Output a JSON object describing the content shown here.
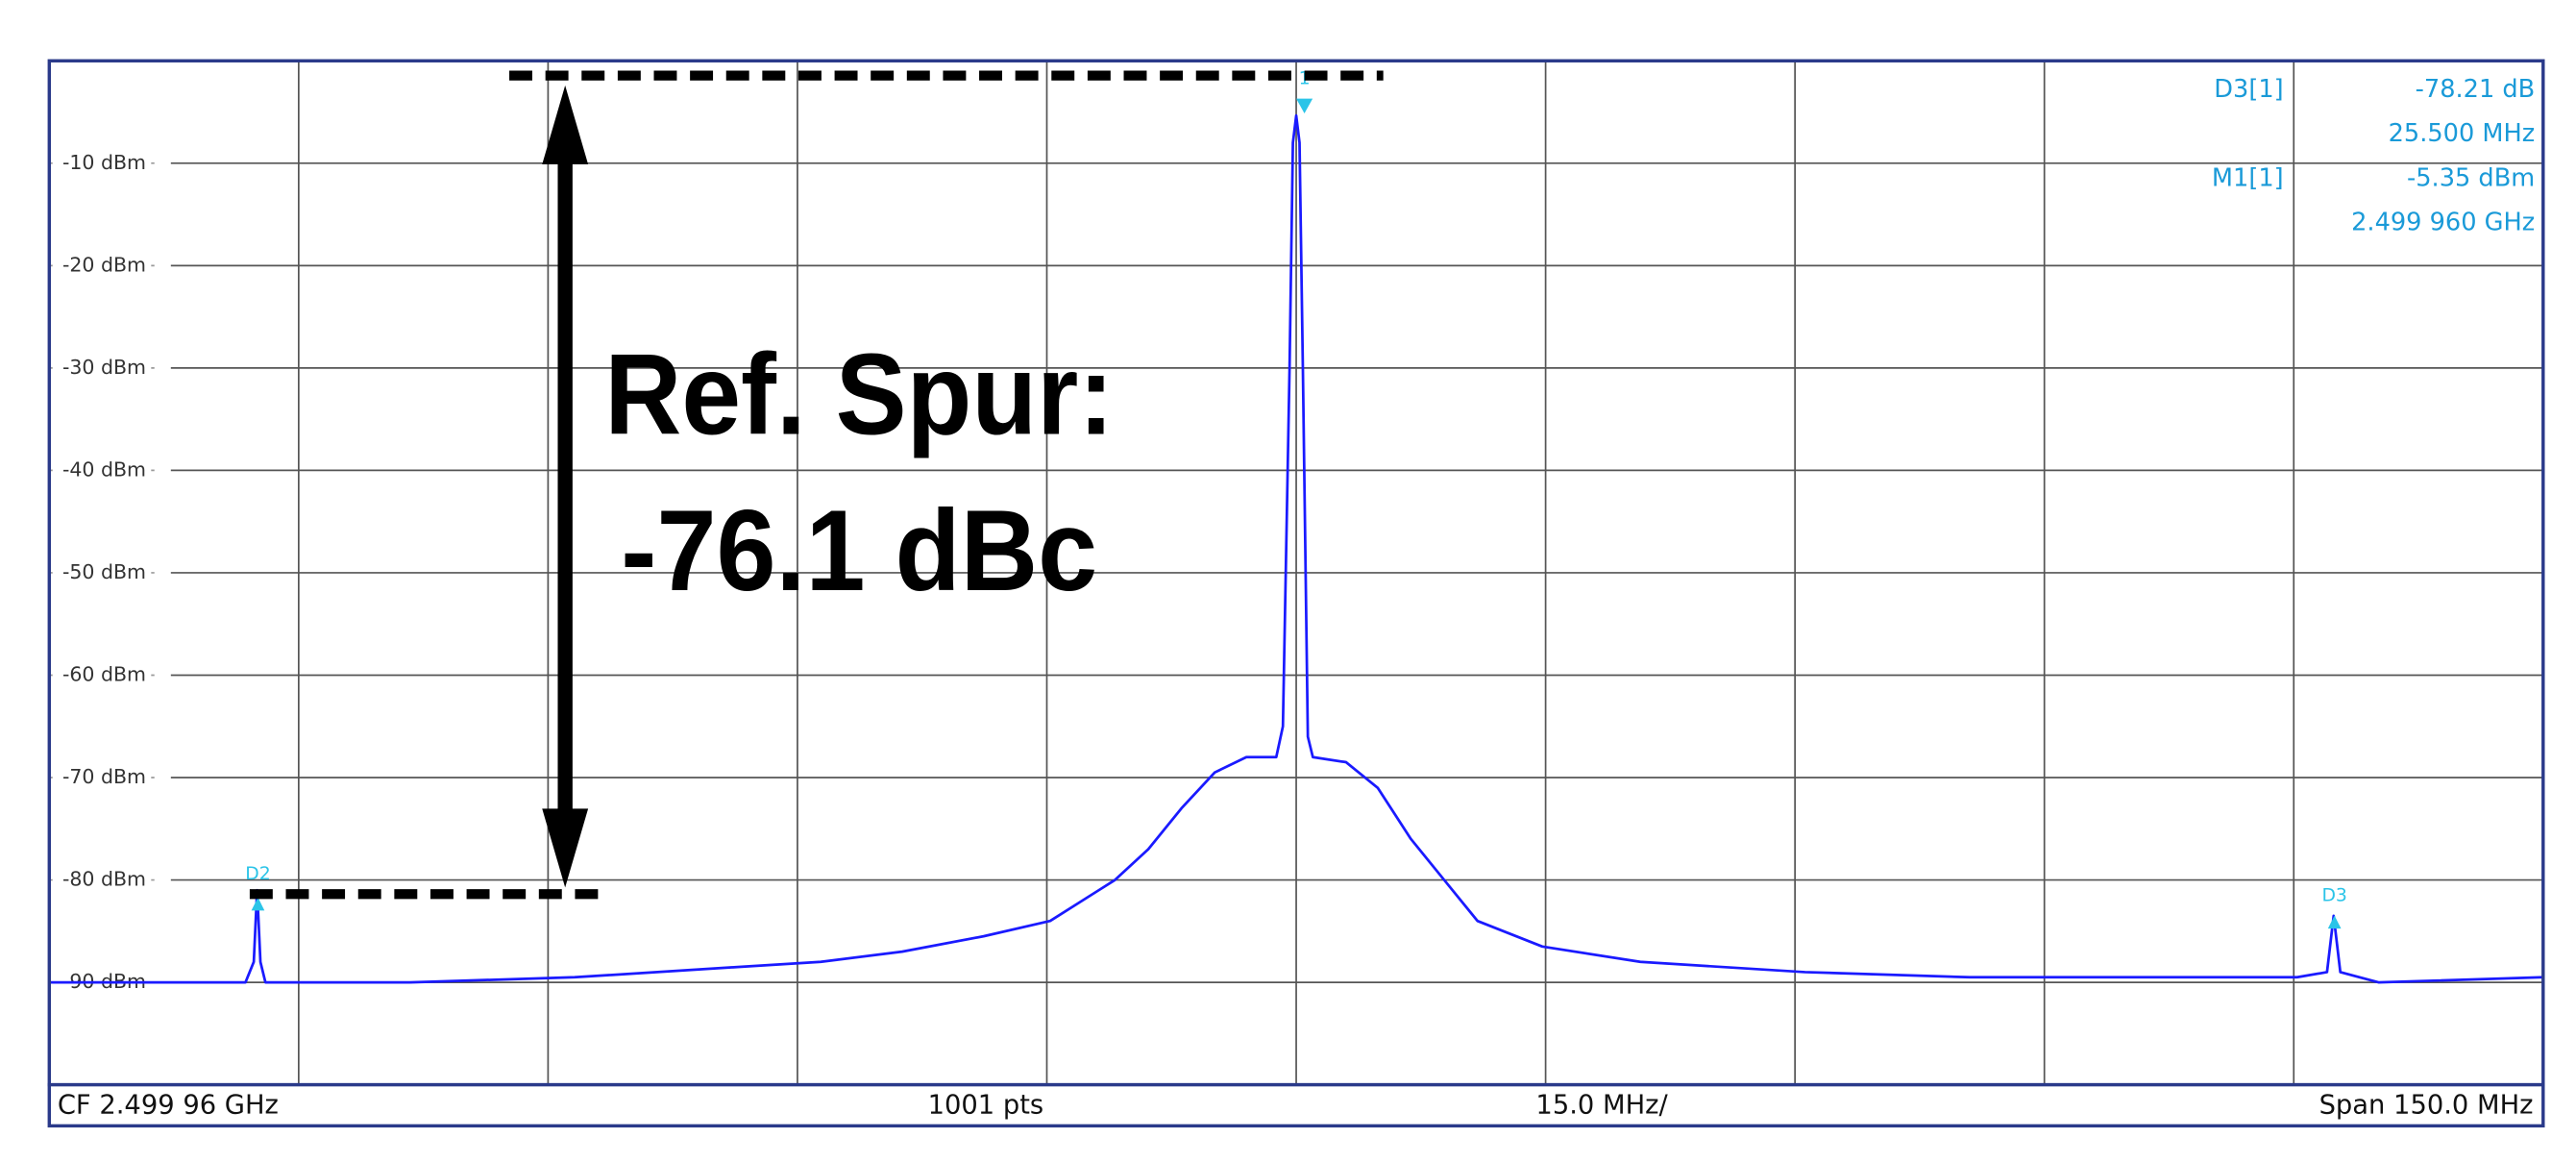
{
  "chart_data": {
    "type": "line",
    "x": [
      -75,
      -68.1,
      -63.2,
      -62.7,
      -62.5,
      -62.3,
      -62.0,
      -53.3,
      -43.4,
      -33.6,
      -28.6,
      -23.7,
      -18.8,
      -14.8,
      -10.9,
      -8.9,
      -6.9,
      -4.9,
      -3.0,
      -1.2,
      -0.8,
      -0.4,
      -0.2,
      0,
      0.2,
      0.4,
      0.7,
      1.0,
      3.0,
      4.9,
      6.9,
      8.9,
      10.9,
      14.8,
      20.7,
      30.6,
      40.5,
      50.3,
      60.2,
      62.0,
      62.4,
      62.8,
      65.1,
      75
    ],
    "values": [
      -90,
      -90,
      -90,
      -88,
      -81,
      -88,
      -90,
      -90,
      -89.5,
      -88.5,
      -88,
      -87,
      -85.5,
      -84,
      -80,
      -77,
      -73,
      -69.5,
      -68,
      -68,
      -65,
      -30,
      -8,
      -5.35,
      -8,
      -30,
      -66,
      -68,
      -68.5,
      -71,
      -76,
      -80,
      -84,
      -86.5,
      -88,
      -89,
      -89.5,
      -89.5,
      -89.5,
      -89,
      -83.5,
      -89,
      -90,
      -89.5
    ],
    "color": "#1a1aff",
    "xlim": [
      -75,
      75
    ],
    "ylim": [
      -100,
      0
    ],
    "yticks": [
      {
        "value": -10,
        "label": "-10 dBm"
      },
      {
        "value": -20,
        "label": "-20 dBm"
      },
      {
        "value": -30,
        "label": "-30 dBm"
      },
      {
        "value": -40,
        "label": "-40 dBm"
      },
      {
        "value": -50,
        "label": "-50 dBm"
      },
      {
        "value": -60,
        "label": "-60 dBm"
      },
      {
        "value": -70,
        "label": "-70 dBm"
      },
      {
        "value": -80,
        "label": "-80 dBm"
      },
      {
        "value": -90,
        "label": "-90 dBm"
      }
    ],
    "grid": true,
    "annotations": [
      "Ref. Spur:",
      "-76.1 dBc"
    ],
    "marker_labels": [
      "1",
      "D2",
      "D3"
    ],
    "marker_table": [
      {
        "name": "D3[1]",
        "value": "-78.21 dB",
        "x": "25.500 MHz"
      },
      {
        "name": "M1[1]",
        "value": "-5.35 dBm",
        "x": "2.499 960 GHz"
      }
    ],
    "footer": [
      "CF 2.499 96 GHz",
      "1001 pts",
      "15.0 MHz/",
      "Span 150.0 MHz"
    ]
  }
}
